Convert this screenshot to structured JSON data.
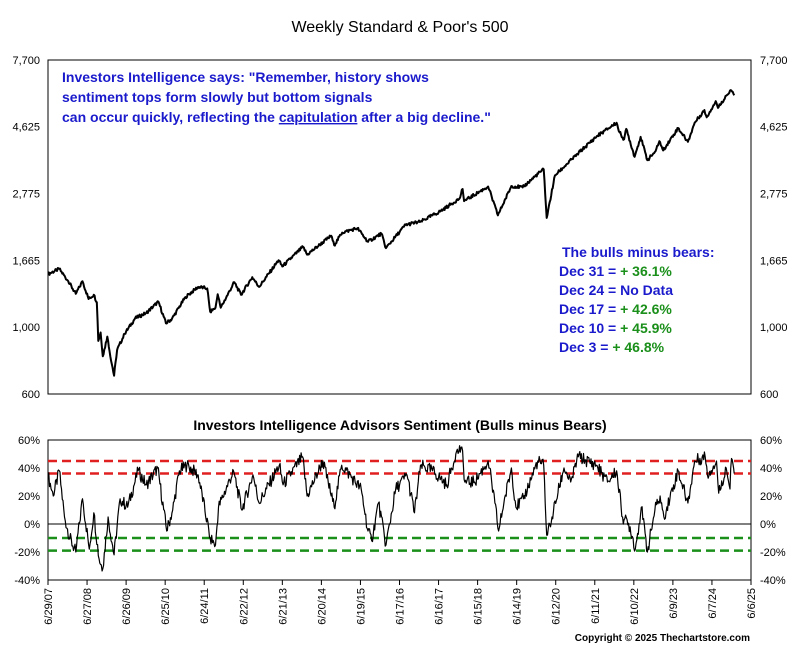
{
  "chart_data": [
    {
      "type": "line",
      "title": "Weekly Standard & Poor's 500",
      "scale": "log",
      "ylim": [
        600,
        7700
      ],
      "yticks": [
        "7,700",
        "4,625",
        "2,775",
        "1,665",
        "1,000",
        "600"
      ],
      "ytick_values": [
        7700,
        4625,
        2775,
        1665,
        1000,
        600
      ],
      "xlim": [
        "2007-06-29",
        "2025-06-06"
      ],
      "grid": false,
      "quote": {
        "before": "Investors Intelligence says: \"Remember, history shows sentiment tops form slowly but bottom signals can occur quickly, reflecting the ",
        "underlined": "capitulation",
        "after": " after a big decline.\""
      },
      "box": {
        "heading": "The bulls minus bears:",
        "rows": [
          {
            "label": "Dec 31 = ",
            "value": "+ 36.1%"
          },
          {
            "label": "Dec 24 = No Data",
            "value": ""
          },
          {
            "label": "Dec 17 = ",
            "value": "+ 42.6%"
          },
          {
            "label": "Dec 10 = ",
            "value": "+ 45.9%"
          },
          {
            "label": "Dec 3 = ",
            "value": "+ 46.8%"
          }
        ]
      },
      "series": [
        {
          "name": "",
          "points": [
            [
              "2007-06-29",
              1500
            ],
            [
              "2007-10-12",
              1560
            ],
            [
              "2008-01-04",
              1420
            ],
            [
              "2008-03-14",
              1290
            ],
            [
              "2008-05-16",
              1420
            ],
            [
              "2008-07-11",
              1240
            ],
            [
              "2008-08-29",
              1280
            ],
            [
              "2008-09-26",
              1210
            ],
            [
              "2008-10-10",
              900
            ],
            [
              "2008-10-31",
              960
            ],
            [
              "2008-11-21",
              800
            ],
            [
              "2009-01-02",
              930
            ],
            [
              "2009-01-23",
              830
            ],
            [
              "2009-03-06",
              690
            ],
            [
              "2009-04-03",
              840
            ],
            [
              "2009-06-12",
              950
            ],
            [
              "2009-09-18",
              1070
            ],
            [
              "2009-12-31",
              1115
            ],
            [
              "2010-04-23",
              1215
            ],
            [
              "2010-07-02",
              1030
            ],
            [
              "2010-08-27",
              1065
            ],
            [
              "2010-12-31",
              1258
            ],
            [
              "2011-04-29",
              1360
            ],
            [
              "2011-07-22",
              1345
            ],
            [
              "2011-08-19",
              1125
            ],
            [
              "2011-10-07",
              1160
            ],
            [
              "2011-10-28",
              1285
            ],
            [
              "2011-11-25",
              1160
            ],
            [
              "2012-03-30",
              1410
            ],
            [
              "2012-06-01",
              1280
            ],
            [
              "2012-09-14",
              1465
            ],
            [
              "2012-11-16",
              1360
            ],
            [
              "2013-05-17",
              1667
            ],
            [
              "2013-06-21",
              1590
            ],
            [
              "2013-12-31",
              1848
            ],
            [
              "2014-02-07",
              1740
            ],
            [
              "2014-09-19",
              2010
            ],
            [
              "2014-10-17",
              1870
            ],
            [
              "2014-12-31",
              2060
            ],
            [
              "2015-05-22",
              2130
            ],
            [
              "2015-08-28",
              1920
            ],
            [
              "2015-12-31",
              2044
            ],
            [
              "2016-02-12",
              1830
            ],
            [
              "2016-08-12",
              2185
            ],
            [
              "2016-12-30",
              2240
            ],
            [
              "2017-06-30",
              2420
            ],
            [
              "2017-12-29",
              2674
            ],
            [
              "2018-01-26",
              2873
            ],
            [
              "2018-02-09",
              2620
            ],
            [
              "2018-09-21",
              2930
            ],
            [
              "2018-12-21",
              2350
            ],
            [
              "2019-04-26",
              2940
            ],
            [
              "2019-08-09",
              2910
            ],
            [
              "2019-12-31",
              3231
            ],
            [
              "2020-02-21",
              3340
            ],
            [
              "2020-03-20",
              2305
            ],
            [
              "2020-06-05",
              3190
            ],
            [
              "2020-09-04",
              3420
            ],
            [
              "2020-12-31",
              3756
            ],
            [
              "2021-06-30",
              4300
            ],
            [
              "2021-12-31",
              4766
            ],
            [
              "2022-01-28",
              4430
            ],
            [
              "2022-03-11",
              4200
            ],
            [
              "2022-04-01",
              4550
            ],
            [
              "2022-06-17",
              3675
            ],
            [
              "2022-08-12",
              4280
            ],
            [
              "2022-10-14",
              3580
            ],
            [
              "2022-12-30",
              3840
            ],
            [
              "2023-02-03",
              4140
            ],
            [
              "2023-03-10",
              3860
            ],
            [
              "2023-07-28",
              4580
            ],
            [
              "2023-10-27",
              4120
            ],
            [
              "2023-12-29",
              4770
            ],
            [
              "2024-03-29",
              5250
            ],
            [
              "2024-04-19",
              4970
            ],
            [
              "2024-07-12",
              5620
            ],
            [
              "2024-08-02",
              5340
            ],
            [
              "2024-10-18",
              5860
            ],
            [
              "2024-12-06",
              6090
            ],
            [
              "2024-12-31",
              5880
            ]
          ]
        }
      ]
    },
    {
      "type": "line",
      "title": "Investors Intelligence Advisors Sentiment (Bulls minus Bears)",
      "ylim": [
        -40,
        60
      ],
      "yticks": [
        "60%",
        "40%",
        "20%",
        "0%",
        "-20%",
        "-40%"
      ],
      "ytick_values": [
        60,
        40,
        20,
        0,
        -20,
        -40
      ],
      "xlim": [
        "2007-06-29",
        "2025-06-06"
      ],
      "grid": false,
      "xticks": [
        "6/29/07",
        "6/27/08",
        "6/26/09",
        "6/25/10",
        "6/24/11",
        "6/22/12",
        "6/21/13",
        "6/20/14",
        "6/19/15",
        "6/17/16",
        "6/16/17",
        "6/15/18",
        "6/14/19",
        "6/12/20",
        "6/11/21",
        "6/10/22",
        "6/9/23",
        "6/7/24",
        "6/6/25"
      ],
      "xtick_dates": [
        "2007-06-29",
        "2008-06-27",
        "2009-06-26",
        "2010-06-25",
        "2011-06-24",
        "2012-06-22",
        "2013-06-21",
        "2014-06-20",
        "2015-06-19",
        "2016-06-17",
        "2017-06-16",
        "2018-06-15",
        "2019-06-14",
        "2020-06-12",
        "2021-06-11",
        "2022-06-10",
        "2023-06-09",
        "2024-06-07",
        "2025-06-06"
      ],
      "reference_lines": [
        {
          "value": 45,
          "color": "#e02020"
        },
        {
          "value": 36.1,
          "color": "#e02020"
        },
        {
          "value": -10,
          "color": "#1a8f1a"
        },
        {
          "value": -19,
          "color": "#1a8f1a"
        },
        {
          "value": 0,
          "color": "#000000"
        }
      ],
      "series": [
        {
          "name": "",
          "points": [
            [
              "2007-06-29",
              35
            ],
            [
              "2007-08-17",
              20
            ],
            [
              "2007-10-12",
              38
            ],
            [
              "2007-11-30",
              5
            ],
            [
              "2008-01-18",
              -10
            ],
            [
              "2008-03-14",
              -20
            ],
            [
              "2008-05-16",
              18
            ],
            [
              "2008-07-18",
              -18
            ],
            [
              "2008-08-29",
              8
            ],
            [
              "2008-10-17",
              -25
            ],
            [
              "2008-11-21",
              -32
            ],
            [
              "2009-01-09",
              5
            ],
            [
              "2009-03-06",
              -22
            ],
            [
              "2009-05-01",
              18
            ],
            [
              "2009-07-10",
              12
            ],
            [
              "2009-10-16",
              38
            ],
            [
              "2009-12-31",
              28
            ],
            [
              "2010-04-16",
              40
            ],
            [
              "2010-07-09",
              -5
            ],
            [
              "2010-09-03",
              10
            ],
            [
              "2010-11-05",
              38
            ],
            [
              "2011-01-14",
              42
            ],
            [
              "2011-04-29",
              35
            ],
            [
              "2011-08-19",
              -10
            ],
            [
              "2011-10-07",
              -15
            ],
            [
              "2011-11-04",
              12
            ],
            [
              "2012-03-23",
              38
            ],
            [
              "2012-06-08",
              10
            ],
            [
              "2012-09-21",
              35
            ],
            [
              "2012-11-16",
              15
            ],
            [
              "2013-05-24",
              42
            ],
            [
              "2013-06-28",
              28
            ],
            [
              "2013-12-27",
              48
            ],
            [
              "2014-02-07",
              20
            ],
            [
              "2014-07-04",
              45
            ],
            [
              "2014-10-17",
              12
            ],
            [
              "2014-12-26",
              42
            ],
            [
              "2015-06-26",
              25
            ],
            [
              "2015-08-28",
              -5
            ],
            [
              "2015-10-02",
              -12
            ],
            [
              "2015-12-04",
              15
            ],
            [
              "2016-02-12",
              -15
            ],
            [
              "2016-05-13",
              25
            ],
            [
              "2016-08-26",
              35
            ],
            [
              "2016-11-04",
              8
            ],
            [
              "2016-12-30",
              42
            ],
            [
              "2017-04-21",
              38
            ],
            [
              "2017-09-01",
              28
            ],
            [
              "2017-11-24",
              50
            ],
            [
              "2018-01-19",
              55
            ],
            [
              "2018-02-16",
              30
            ],
            [
              "2018-05-18",
              30
            ],
            [
              "2018-09-21",
              45
            ],
            [
              "2018-11-23",
              15
            ],
            [
              "2018-12-28",
              -5
            ],
            [
              "2019-02-15",
              15
            ],
            [
              "2019-04-26",
              40
            ],
            [
              "2019-06-07",
              12
            ],
            [
              "2019-08-16",
              18
            ],
            [
              "2019-12-27",
              45
            ],
            [
              "2020-02-21",
              42
            ],
            [
              "2020-03-20",
              -8
            ],
            [
              "2020-05-08",
              5
            ],
            [
              "2020-08-28",
              40
            ],
            [
              "2020-10-30",
              30
            ],
            [
              "2021-01-08",
              48
            ],
            [
              "2021-06-25",
              42
            ],
            [
              "2021-10-08",
              30
            ],
            [
              "2021-12-31",
              38
            ],
            [
              "2022-02-25",
              5
            ],
            [
              "2022-05-06",
              -2
            ],
            [
              "2022-06-24",
              -18
            ],
            [
              "2022-08-19",
              12
            ],
            [
              "2022-10-14",
              -20
            ],
            [
              "2022-12-23",
              10
            ],
            [
              "2023-02-10",
              20
            ],
            [
              "2023-03-17",
              5
            ],
            [
              "2023-07-28",
              38
            ],
            [
              "2023-10-27",
              15
            ],
            [
              "2023-12-29",
              45
            ],
            [
              "2024-04-05",
              48
            ],
            [
              "2024-04-26",
              35
            ],
            [
              "2024-07-19",
              45
            ],
            [
              "2024-08-09",
              22
            ],
            [
              "2024-10-18",
              40
            ],
            [
              "2024-11-22",
              25
            ],
            [
              "2024-12-06",
              46.8
            ],
            [
              "2024-12-13",
              45.9
            ],
            [
              "2024-12-20",
              42.6
            ],
            [
              "2024-12-31",
              36.1
            ]
          ]
        }
      ]
    }
  ],
  "copyright": "Copyright © 2025 Thechartstore.com",
  "colors": {
    "price_line": "#000000",
    "quote_text": "#1a1acc",
    "value_green": "#1a8f1a",
    "red_dash": "#e02020",
    "green_dash": "#1a8f1a"
  }
}
